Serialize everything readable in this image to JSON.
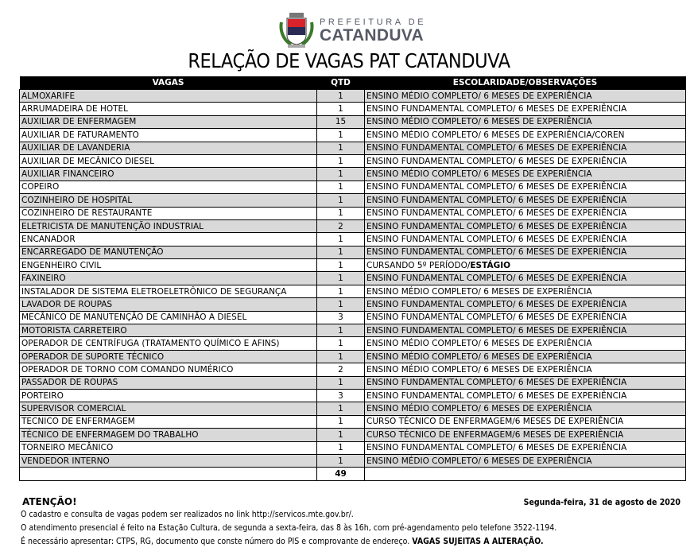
{
  "header": {
    "logo_top": "PREFEITURA DE",
    "logo_main": "CATANDUVA",
    "title": "RELAÇÃO DE VAGAS PAT CATANDUVA"
  },
  "table": {
    "columns": [
      "VAGAS",
      "QTD",
      "ESCOLARIDADE/OBSERVAÇÕES"
    ],
    "rows": [
      {
        "vaga": "ALMOXARIFE",
        "qtd": "1",
        "esc": "ENSINO MÉDIO COMPLETO/ 6 MESES DE EXPERIÊNCIA"
      },
      {
        "vaga": "ARRUMADEIRA DE HOTEL",
        "qtd": "1",
        "esc": "ENSINO FUNDAMENTAL COMPLETO/ 6 MESES DE EXPERIÊNCIA"
      },
      {
        "vaga": "AUXILIAR DE ENFERMAGEM",
        "qtd": "15",
        "esc": "ENSINO MÉDIO COMPLETO/ 6 MESES DE EXPERIÊNCIA"
      },
      {
        "vaga": "AUXILIAR DE FATURAMENTO",
        "qtd": "1",
        "esc": "ENSINO MÉDIO COMPLETO/ 6 MESES DE EXPERIÊNCIA/COREN"
      },
      {
        "vaga": "AUXILIAR DE LAVANDERIA",
        "qtd": "1",
        "esc": "ENSINO FUNDAMENTAL COMPLETO/ 6 MESES DE EXPERIÊNCIA"
      },
      {
        "vaga": "AUXILIAR DE MECÂNICO DIESEL",
        "qtd": "1",
        "esc": "ENSINO FUNDAMENTAL COMPLETO/ 6 MESES DE EXPERIÊNCIA"
      },
      {
        "vaga": "AUXILIAR  FINANCEIRO",
        "qtd": "1",
        "esc": "ENSINO MÉDIO COMPLETO/ 6 MESES DE EXPERIÊNCIA"
      },
      {
        "vaga": "COPEIRO",
        "qtd": "1",
        "esc": "ENSINO FUNDAMENTAL COMPLETO/ 6 MESES DE EXPERIÊNCIA"
      },
      {
        "vaga": "COZINHEIRO DE HOSPITAL",
        "qtd": "1",
        "esc": "ENSINO FUNDAMENTAL COMPLETO/ 6 MESES DE EXPERIÊNCIA"
      },
      {
        "vaga": "COZINHEIRO DE RESTAURANTE",
        "qtd": "1",
        "esc": "ENSINO FUNDAMENTAL COMPLETO/ 6 MESES DE EXPERIÊNCIA"
      },
      {
        "vaga": "ELETRICISTA DE MANUTENÇÃO INDUSTRIAL",
        "qtd": "2",
        "esc": "ENSINO FUNDAMENTAL COMPLETO/ 6 MESES DE EXPERIÊNCIA"
      },
      {
        "vaga": "ENCANADOR",
        "qtd": "1",
        "esc": "ENSINO FUNDAMENTAL COMPLETO/ 6 MESES DE EXPERIÊNCIA"
      },
      {
        "vaga": "ENCARREGADO DE MANUTENÇÃO",
        "qtd": "1",
        "esc": "ENSINO FUNDAMENTAL COMPLETO/ 6 MESES DE EXPERIÊNCIA"
      },
      {
        "vaga": "ENGENHEIRO CIVIL",
        "qtd": "1",
        "esc": "CURSANDO 5º PERÍODO/",
        "esc_bold": "ESTÁGIO"
      },
      {
        "vaga": "FAXINEIRO",
        "qtd": "1",
        "esc": "ENSINO FUNDAMENTAL COMPLETO/ 6 MESES DE EXPERIÊNCIA"
      },
      {
        "vaga": "INSTALADOR DE SISTEMA ELETROELETRÔNICO DE SEGURANÇA",
        "qtd": "1",
        "esc": "ENSINO MÉDIO COMPLETO/ 6 MESES DE EXPERIÊNCIA"
      },
      {
        "vaga": "LAVADOR DE ROUPAS",
        "qtd": "1",
        "esc": "ENSINO FUNDAMENTAL COMPLETO/ 6 MESES DE EXPERIÊNCIA"
      },
      {
        "vaga": "MECÂNICO DE MANUTENÇÃO DE CAMINHÃO A DIESEL",
        "qtd": "3",
        "esc": "ENSINO FUNDAMENTAL COMPLETO/ 6 MESES DE EXPERIÊNCIA"
      },
      {
        "vaga": "MOTORISTA CARRETEIRO",
        "qtd": "1",
        "esc": "ENSINO FUNDAMENTAL COMPLETO/ 6 MESES DE EXPERIÊNCIA"
      },
      {
        "vaga": "OPERADOR DE CENTRÍFUGA (TRATAMENTO QUÍMICO E AFINS)",
        "qtd": "1",
        "esc": "ENSINO MÉDIO COMPLETO/ 6 MESES DE EXPERIÊNCIA"
      },
      {
        "vaga": "OPERADOR DE SUPORTE TÉCNICO",
        "qtd": "1",
        "esc": "ENSINO MÉDIO COMPLETO/ 6 MESES DE EXPERIÊNCIA"
      },
      {
        "vaga": "OPERADOR DE TORNO COM COMANDO NUMÉRICO",
        "qtd": "2",
        "esc": "ENSINO MÉDIO COMPLETO/ 6 MESES DE EXPERIÊNCIA"
      },
      {
        "vaga": "PASSADOR DE ROUPAS",
        "qtd": "1",
        "esc": "ENSINO FUNDAMENTAL COMPLETO/ 6 MESES DE EXPERIÊNCIA"
      },
      {
        "vaga": "PORTEIRO",
        "qtd": "3",
        "esc": "ENSINO FUNDAMENTAL COMPLETO/ 6 MESES DE EXPERIÊNCIA"
      },
      {
        "vaga": "SUPERVISOR COMERCIAL",
        "qtd": "1",
        "esc": "ENSINO MÉDIO COMPLETO/ 6 MESES DE EXPERIÊNCIA"
      },
      {
        "vaga": "TECNICO DE ENFERMAGEM",
        "qtd": "1",
        "esc": "CURSO TÉCNICO DE ENFERMAGEM/6 MESES DE EXPERIÊNCIA"
      },
      {
        "vaga": "TÉCNICO DE ENFERMAGEM DO TRABALHO",
        "qtd": "1",
        "esc": "CURSO TÉCNICO DE ENFERMAGEM/6 MESES DE EXPERIÊNCIA"
      },
      {
        "vaga": "TORNEIRO MECÂNICO",
        "qtd": "1",
        "esc": "ENSINO FUNDAMENTAL COMPLETO/ 6 MESES DE EXPERIÊNCIA"
      },
      {
        "vaga": "VENDEDOR INTERNO",
        "qtd": "1",
        "esc": "ENSINO MÉDIO COMPLETO/ 6 MESES DE EXPERIÊNCIA"
      }
    ],
    "total": "49",
    "stripe_color": "#d9d9d9"
  },
  "footer": {
    "attention": "ATENÇÃO!",
    "date": "Segunda-feira, 31 de agosto de 2020",
    "line1": "O cadastro e consulta de vagas podem ser realizados no link http://servicos.mte.gov.br/.",
    "line2": "O atendimento presencial é feito na Estação Cultura, de segunda a sexta-feira, das 8 às 16h, com pré-agendamento pelo telefone 3522-1194.",
    "line3": "É necessário apresentar: CTPS, RG, documento que conste número do PIS e comprovante de endereço. ",
    "line3_bold": "VAGAS SUJEITAS A ALTERAÇÃO."
  }
}
